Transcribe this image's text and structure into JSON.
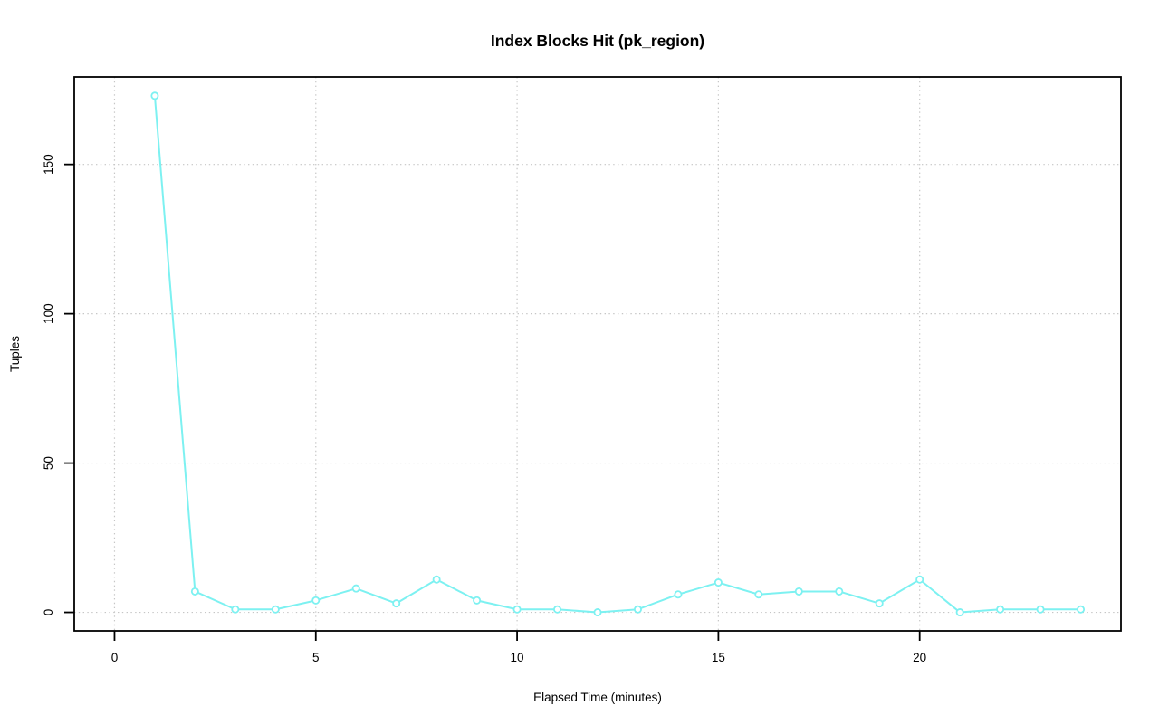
{
  "title": "Index Blocks Hit (pk_region)",
  "chart_data": {
    "type": "line",
    "title": "Index Blocks Hit (pk_region)",
    "xlabel": "Elapsed Time (minutes)",
    "ylabel": "Tuples",
    "series": [
      {
        "name": "index-blocks-hit",
        "x": [
          1,
          2,
          3,
          4,
          5,
          6,
          7,
          8,
          9,
          10,
          11,
          12,
          13,
          14,
          15,
          16,
          17,
          18,
          19,
          20,
          21,
          22,
          23,
          24
        ],
        "values": [
          173,
          7,
          1,
          1,
          4,
          8,
          3,
          11,
          4,
          1,
          1,
          0,
          1,
          6,
          10,
          6,
          7,
          7,
          3,
          11,
          0,
          1,
          1,
          1
        ]
      }
    ],
    "x_ticks": [
      0,
      5,
      10,
      15,
      20
    ],
    "y_ticks": [
      0,
      50,
      100,
      150
    ],
    "xlim": [
      -1,
      25
    ],
    "ylim": [
      -6.2,
      179.3
    ],
    "grid": true,
    "grid_style": "dotted",
    "legend_position": "none",
    "marker": "open-circle",
    "colors": {
      "line": "#7df1f1",
      "marker_fill": "#ffffff",
      "grid": "#c6c6c6",
      "axis": "#000000",
      "background": "#ffffff"
    }
  }
}
